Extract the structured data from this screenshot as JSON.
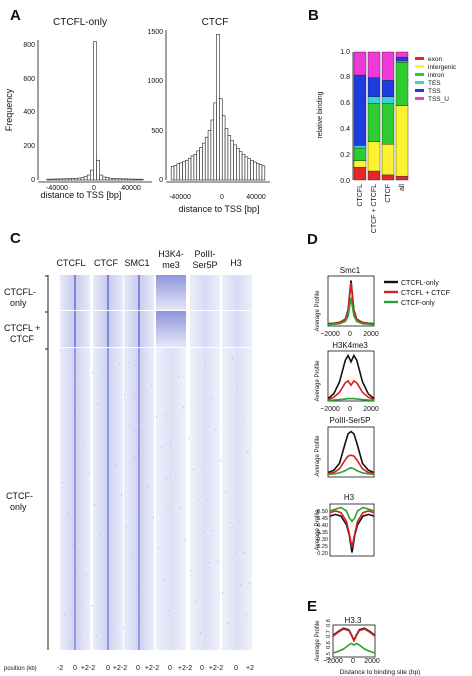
{
  "panels": {
    "A": "A",
    "B": "B",
    "C": "C",
    "D": "D",
    "E": "E"
  },
  "panelA": {
    "left": {
      "title": "CTCFL-only",
      "ylabel": "Frequency",
      "xlabel": "distance to TSS [bp]",
      "yticks": [
        "0",
        "200",
        "400",
        "600",
        "800"
      ],
      "xticks": [
        "-40000",
        "0",
        "40000"
      ]
    },
    "right": {
      "title": "CTCF",
      "xlabel": "distance to TSS [bp]",
      "yticks": [
        "0",
        "500",
        "1000",
        "1500"
      ],
      "xticks": [
        "-40000",
        "0",
        "40000"
      ]
    }
  },
  "panelB": {
    "ylabel": "relative binding",
    "yticks": [
      "0.0",
      "0.2",
      "0.4",
      "0.6",
      "0.8",
      "1.0"
    ]
  },
  "panelC": {
    "columns": [
      "CTCFL",
      "CTCF",
      "SMC1",
      "H3K4-",
      "me3",
      "PolII-",
      "Ser5P",
      "H3"
    ],
    "rows": {
      "r1a": "CTCFL-",
      "r1b": "only",
      "r2a": "CTCFL +",
      "r2b": "CTCF",
      "r3a": "CTCF-",
      "r3b": "only"
    },
    "position_label": "position (kb)",
    "xtick_labels": [
      "-2",
      "0",
      "+2-2",
      "0",
      "+2-2",
      "0",
      "+2-2",
      "0",
      "+2-2",
      "0",
      "+2-2",
      "0",
      "+2"
    ]
  },
  "panelD": {
    "ylabel": "Average Profile",
    "titles": [
      "Smc1",
      "H3K4me3",
      "PolII-Ser5P",
      "H3"
    ],
    "legend": [
      "CTCFL-only",
      "CTCFL + CTCF",
      "CTCF-only"
    ],
    "xticks": [
      "−2000",
      "0",
      "2000"
    ],
    "h3_yticks": [
      "0.20",
      "0.25",
      "0.30",
      "0.35",
      "0.40",
      "0.45",
      "0.50"
    ]
  },
  "panelE": {
    "title": "H3.3",
    "ylabel": "Average Profile",
    "yticks": [
      "0.5",
      "0.6",
      "0.7",
      "0.8"
    ],
    "xticks": [
      "−2000",
      "0",
      "2000"
    ],
    "xlabel": "Distance to binding site (bp)"
  },
  "colors": {
    "black": "#111111",
    "red": "#d62020",
    "green": "#2ca02c",
    "exon": "#e8262a",
    "intergenic": "#fdf22f",
    "intron": "#2ecc2e",
    "TES": "#33d6d6",
    "TSS": "#1d3be0",
    "TSS_U": "#ee3ad8",
    "heatmap": "#4a55c8"
  },
  "chart_data": [
    {
      "type": "bar",
      "title": "CTCFL-only",
      "xlabel": "distance to TSS [bp]",
      "ylabel": "Frequency",
      "x": [
        -45000,
        -42000,
        -39000,
        -36000,
        -33000,
        -30000,
        -27000,
        -24000,
        -21000,
        -18000,
        -15000,
        -12000,
        -9000,
        -6000,
        -3000,
        0,
        3000,
        6000,
        9000,
        12000,
        15000,
        18000,
        21000,
        24000,
        27000,
        30000,
        33000,
        36000,
        39000,
        42000,
        45000
      ],
      "values": [
        5,
        5,
        6,
        6,
        7,
        7,
        8,
        8,
        9,
        10,
        12,
        15,
        20,
        30,
        60,
        840,
        120,
        30,
        18,
        14,
        11,
        9,
        8,
        8,
        7,
        7,
        6,
        6,
        5,
        5,
        5
      ],
      "xlim": [
        -55000,
        55000
      ],
      "ylim": [
        0,
        850
      ]
    },
    {
      "type": "bar",
      "title": "CTCF",
      "xlabel": "distance to TSS [bp]",
      "x": [
        -48000,
        -45000,
        -42000,
        -39000,
        -36000,
        -33000,
        -30000,
        -27000,
        -24000,
        -21000,
        -18000,
        -15000,
        -12000,
        -9000,
        -6000,
        -3000,
        0,
        3000,
        6000,
        9000,
        12000,
        15000,
        18000,
        21000,
        24000,
        27000,
        30000,
        33000,
        36000,
        39000,
        42000,
        45000,
        48000
      ],
      "values": [
        160,
        170,
        190,
        200,
        215,
        230,
        250,
        280,
        300,
        340,
        380,
        430,
        500,
        580,
        700,
        900,
        1700,
        950,
        750,
        600,
        520,
        460,
        410,
        370,
        330,
        300,
        270,
        250,
        230,
        210,
        195,
        180,
        165
      ],
      "xlim": [
        -55000,
        55000
      ],
      "ylim": [
        0,
        1750
      ]
    },
    {
      "type": "bar",
      "stacked": true,
      "ylabel": "relative binding",
      "categories": [
        "CTCFL",
        "CTCF + CTCFL",
        "CTCF",
        "all"
      ],
      "series": [
        {
          "name": "exon",
          "values": [
            0.1,
            0.07,
            0.04,
            0.03
          ]
        },
        {
          "name": "intergenic",
          "values": [
            0.05,
            0.23,
            0.24,
            0.55
          ]
        },
        {
          "name": "intron",
          "values": [
            0.1,
            0.3,
            0.32,
            0.34
          ]
        },
        {
          "name": "TES",
          "values": [
            0.02,
            0.05,
            0.05,
            0.01
          ]
        },
        {
          "name": "TSS",
          "values": [
            0.55,
            0.15,
            0.13,
            0.03
          ]
        },
        {
          "name": "TSS_U",
          "values": [
            0.18,
            0.2,
            0.22,
            0.04
          ]
        }
      ],
      "ylim": [
        0,
        1.0
      ]
    },
    {
      "type": "line",
      "title": "Smc1",
      "ylabel": "Average Profile",
      "x": [
        -2000,
        -1500,
        -1000,
        -500,
        -250,
        0,
        250,
        500,
        1000,
        1500,
        2000
      ],
      "series": [
        {
          "name": "CTCFL-only",
          "values": [
            0.05,
            0.06,
            0.08,
            0.15,
            0.35,
            1.0,
            0.35,
            0.15,
            0.08,
            0.06,
            0.05
          ]
        },
        {
          "name": "CTCFL + CTCF",
          "values": [
            0.04,
            0.05,
            0.07,
            0.14,
            0.32,
            0.95,
            0.32,
            0.14,
            0.07,
            0.05,
            0.04
          ]
        },
        {
          "name": "CTCF-only",
          "values": [
            0.03,
            0.04,
            0.05,
            0.1,
            0.22,
            0.62,
            0.22,
            0.1,
            0.05,
            0.04,
            0.03
          ]
        }
      ]
    },
    {
      "type": "line",
      "title": "H3K4me3",
      "ylabel": "Average Profile",
      "x": [
        -2000,
        -1500,
        -1000,
        -500,
        -250,
        0,
        250,
        500,
        1000,
        1500,
        2000
      ],
      "series": [
        {
          "name": "CTCFL-only",
          "values": [
            0.05,
            0.15,
            0.4,
            0.85,
            0.95,
            0.82,
            0.95,
            0.85,
            0.4,
            0.15,
            0.05
          ]
        },
        {
          "name": "CTCFL + CTCF",
          "values": [
            0.03,
            0.08,
            0.18,
            0.38,
            0.42,
            0.33,
            0.42,
            0.38,
            0.18,
            0.08,
            0.03
          ]
        },
        {
          "name": "CTCF-only",
          "values": [
            0.01,
            0.02,
            0.03,
            0.04,
            0.05,
            0.05,
            0.05,
            0.04,
            0.03,
            0.02,
            0.01
          ]
        }
      ]
    },
    {
      "type": "line",
      "title": "PolII-Ser5P",
      "ylabel": "Average Profile",
      "x": [
        -2000,
        -1500,
        -1000,
        -500,
        -250,
        0,
        250,
        500,
        1000,
        1500,
        2000
      ],
      "series": [
        {
          "name": "CTCFL-only",
          "values": [
            0.1,
            0.15,
            0.3,
            0.75,
            0.95,
            1.0,
            0.95,
            0.75,
            0.3,
            0.15,
            0.1
          ]
        },
        {
          "name": "CTCFL + CTCF",
          "values": [
            0.08,
            0.1,
            0.18,
            0.38,
            0.46,
            0.48,
            0.46,
            0.38,
            0.18,
            0.1,
            0.08
          ]
        },
        {
          "name": "CTCF-only",
          "values": [
            0.06,
            0.07,
            0.09,
            0.14,
            0.18,
            0.2,
            0.18,
            0.14,
            0.09,
            0.07,
            0.06
          ]
        }
      ]
    },
    {
      "type": "line",
      "title": "H3",
      "ylabel": "Average Profile",
      "x": [
        -2000,
        -1500,
        -1000,
        -500,
        -250,
        0,
        250,
        500,
        1000,
        1500,
        2000
      ],
      "series": [
        {
          "name": "CTCFL-only",
          "values": [
            0.43,
            0.44,
            0.43,
            0.38,
            0.32,
            0.22,
            0.32,
            0.38,
            0.43,
            0.44,
            0.43
          ]
        },
        {
          "name": "CTCFL + CTCF",
          "values": [
            0.45,
            0.46,
            0.45,
            0.4,
            0.33,
            0.25,
            0.33,
            0.4,
            0.45,
            0.46,
            0.45
          ]
        },
        {
          "name": "CTCF-only",
          "values": [
            0.46,
            0.47,
            0.48,
            0.46,
            0.42,
            0.4,
            0.42,
            0.46,
            0.48,
            0.47,
            0.46
          ]
        }
      ],
      "ylim": [
        0.2,
        0.5
      ]
    },
    {
      "type": "line",
      "title": "H3.3",
      "ylabel": "Average Profile",
      "xlabel": "Distance to binding site (bp)",
      "x": [
        -2000,
        -1500,
        -1000,
        -500,
        -250,
        0,
        250,
        500,
        1000,
        1500,
        2000
      ],
      "series": [
        {
          "name": "CTCFL-only",
          "values": [
            0.72,
            0.77,
            0.81,
            0.79,
            0.73,
            0.66,
            0.73,
            0.79,
            0.81,
            0.77,
            0.72
          ]
        },
        {
          "name": "CTCFL + CTCF",
          "values": [
            0.71,
            0.76,
            0.8,
            0.78,
            0.72,
            0.65,
            0.72,
            0.78,
            0.8,
            0.76,
            0.71
          ]
        },
        {
          "name": "CTCF-only",
          "values": [
            0.5,
            0.52,
            0.55,
            0.6,
            0.62,
            0.6,
            0.62,
            0.6,
            0.55,
            0.52,
            0.5
          ]
        }
      ],
      "ylim": [
        0.45,
        0.85
      ]
    }
  ]
}
